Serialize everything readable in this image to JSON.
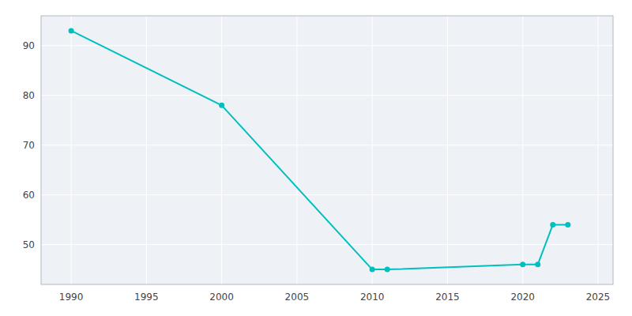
{
  "chart_data": {
    "type": "line",
    "x": [
      1990,
      2000,
      2010,
      2011,
      2020,
      2021,
      2022,
      2023
    ],
    "values": [
      93,
      78,
      45,
      45,
      46,
      46,
      54,
      54
    ],
    "color": "#00BFBF",
    "marker": "circle",
    "xlim": [
      1988,
      2026
    ],
    "ylim": [
      42,
      96
    ],
    "xticks": [
      1990,
      1995,
      2000,
      2005,
      2010,
      2015,
      2020,
      2025
    ],
    "yticks": [
      50,
      60,
      70,
      80,
      90
    ],
    "grid": true
  }
}
